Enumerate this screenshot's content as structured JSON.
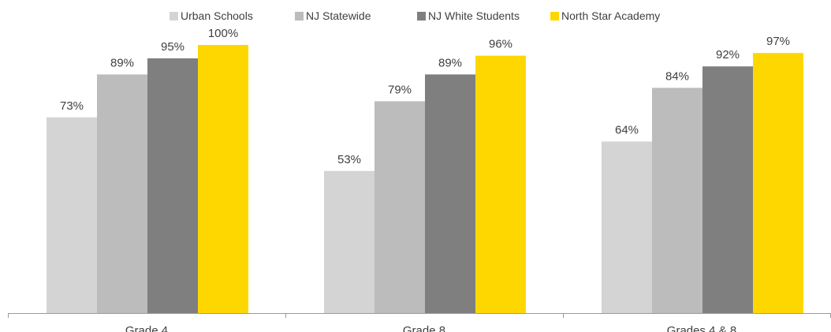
{
  "chart_data": {
    "type": "bar",
    "categories": [
      "Grade 4",
      "Grade 8",
      "Grades 4 & 8"
    ],
    "series": [
      {
        "name": "Urban Schools",
        "values": [
          73,
          53,
          64
        ],
        "color": "#d4d4d4"
      },
      {
        "name": "NJ Statewide",
        "values": [
          89,
          79,
          84
        ],
        "color": "#bcbcbc"
      },
      {
        "name": "NJ White Students",
        "values": [
          95,
          89,
          92
        ],
        "color": "#7f7f7f"
      },
      {
        "name": "North Star Academy",
        "values": [
          100,
          96,
          97
        ],
        "color": "#ffd700"
      }
    ],
    "value_format": "{v}%",
    "ylim": [
      0,
      100
    ],
    "grid": false,
    "legend_position": "top"
  }
}
